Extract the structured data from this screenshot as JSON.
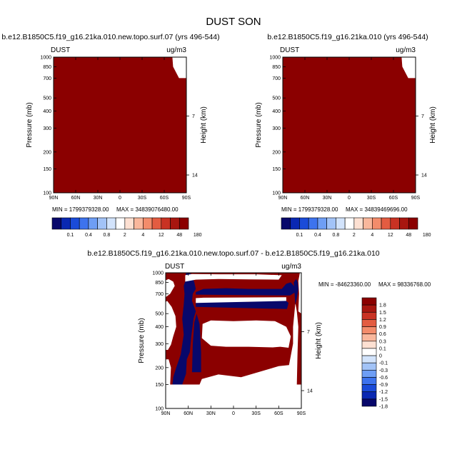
{
  "figure": {
    "title": "DUST SON"
  },
  "colormap": [
    "#08086b",
    "#0a28b2",
    "#1a4bd9",
    "#3d73ee",
    "#6e9ef5",
    "#a2c3f7",
    "#d2e3fb",
    "#ffffff",
    "#fde0d2",
    "#f9b79c",
    "#f38c6b",
    "#e35c41",
    "#c93223",
    "#a8160f",
    "#8b0000"
  ],
  "chart_data": [
    {
      "type": "heatmap",
      "title": "b.e12.B1850C5.f19_g16.21ka.010.new.topo.surf.07 (yrs 496-544)",
      "variable": "DUST",
      "units": "ug/m3",
      "ylabel": "Pressure (mb)",
      "y2label": "Height (km)",
      "xticks": [
        "90N",
        "60N",
        "30N",
        "0",
        "30S",
        "60S",
        "90S"
      ],
      "yticks": [
        "100",
        "150",
        "200",
        "300",
        "400",
        "500",
        "700",
        "850",
        "1000"
      ],
      "y2ticks": [
        "14",
        "7"
      ],
      "xlim": [
        90,
        -90
      ],
      "ylim": [
        1000,
        100
      ],
      "min_label": "MIN = 1799379328.00",
      "max_label": "MAX = 34839076480.00",
      "levels": [
        "0.1",
        "0.4",
        "0.8",
        "2",
        "4",
        "12",
        "48",
        "180"
      ],
      "colorbar": "horizontal",
      "missing_region": [
        [
          -71,
          1000
        ],
        [
          -72,
          850
        ],
        [
          -80,
          700
        ],
        [
          -90,
          700
        ],
        [
          -90,
          1000
        ]
      ]
    },
    {
      "type": "heatmap",
      "title": "b.e12.B1850C5.f19_g16.21ka.010 (yrs 496-544)",
      "variable": "DUST",
      "units": "ug/m3",
      "ylabel": "Pressure (mb)",
      "y2label": "Height (km)",
      "xticks": [
        "90N",
        "60N",
        "30N",
        "0",
        "30S",
        "60S",
        "90S"
      ],
      "yticks": [
        "100",
        "150",
        "200",
        "300",
        "400",
        "500",
        "700",
        "850",
        "1000"
      ],
      "y2ticks": [
        "14",
        "7"
      ],
      "xlim": [
        90,
        -90
      ],
      "ylim": [
        1000,
        100
      ],
      "min_label": "MIN = 1799379328.00",
      "max_label": "MAX = 34839469696.00",
      "levels": [
        "0.1",
        "0.4",
        "0.8",
        "2",
        "4",
        "12",
        "48",
        "180"
      ],
      "colorbar": "horizontal",
      "missing_region": [
        [
          -71,
          1000
        ],
        [
          -72,
          850
        ],
        [
          -80,
          700
        ],
        [
          -90,
          700
        ],
        [
          -90,
          1000
        ]
      ]
    },
    {
      "type": "heatmap",
      "title": "b.e12.B1850C5.f19_g16.21ka.010.new.topo.surf.07 - b.e12.B1850C5.f19_g16.21ka.010",
      "variable": "DUST",
      "units": "ug/m3",
      "ylabel": "Pressure (mb)",
      "y2label": "Height (km)",
      "xticks": [
        "90N",
        "60N",
        "30N",
        "0",
        "30S",
        "60S",
        "90S"
      ],
      "yticks": [
        "100",
        "150",
        "200",
        "300",
        "400",
        "500",
        "700",
        "850",
        "1000"
      ],
      "y2ticks": [
        "14",
        "7"
      ],
      "xlim": [
        90,
        -90
      ],
      "ylim": [
        1000,
        100
      ],
      "min_label": "MIN = -84623360.00",
      "max_label": "MAX = 98336768.00",
      "levels": [
        "1.8",
        "1.5",
        "1.2",
        "0.9",
        "0.6",
        "0.3",
        "0.1",
        "0",
        "-0.1",
        "-0.3",
        "-0.6",
        "-0.9",
        "-1.2",
        "-1.5",
        "-1.8"
      ],
      "colorbar": "vertical",
      "data_top_pressure": 150,
      "regions": [
        {
          "fill": "white",
          "polygon": [
            [
              90,
              150
            ],
            [
              -90,
              150
            ],
            [
              -90,
              100
            ],
            [
              90,
              100
            ]
          ]
        },
        {
          "fill": "positive",
          "polygon": [
            [
              90,
              150
            ],
            [
              -90,
              150
            ],
            [
              -90,
              1000
            ],
            [
              90,
              1000
            ]
          ]
        },
        {
          "fill": "negative",
          "polygon": [
            [
              81,
              150
            ],
            [
              68,
              150
            ],
            [
              63,
              180
            ],
            [
              62,
              230
            ],
            [
              58,
              260
            ],
            [
              56,
              340
            ],
            [
              53,
              460
            ],
            [
              50,
              520
            ],
            [
              55,
              620
            ],
            [
              54,
              700
            ],
            [
              50,
              760
            ],
            [
              52,
              850
            ],
            [
              56,
              980
            ],
            [
              60,
              1000
            ],
            [
              63,
              1000
            ],
            [
              63,
              900
            ],
            [
              66,
              800
            ],
            [
              65,
              700
            ],
            [
              66,
              580
            ],
            [
              68,
              460
            ],
            [
              66,
              350
            ],
            [
              70,
              250
            ],
            [
              76,
              200
            ],
            [
              80,
              170
            ]
          ]
        },
        {
          "fill": "negative",
          "polygon": [
            [
              55,
              185
            ],
            [
              43,
              185
            ],
            [
              43,
              260
            ],
            [
              45,
              420
            ],
            [
              49,
              500
            ],
            [
              52,
              430
            ],
            [
              54,
              300
            ]
          ]
        },
        {
          "fill": "negative",
          "polygon": [
            [
              50,
              560
            ],
            [
              -71,
              540
            ],
            [
              -73,
              600
            ],
            [
              -70,
              620
            ],
            [
              -58,
              630
            ],
            [
              -20,
              610
            ],
            [
              10,
              620
            ],
            [
              40,
              615
            ],
            [
              50,
              600
            ]
          ]
        },
        {
          "fill": "negative",
          "polygon": [
            [
              50,
              690
            ],
            [
              -75,
              680
            ],
            [
              -82,
              720
            ],
            [
              -81,
              790
            ],
            [
              -76,
              850
            ],
            [
              -70,
              830
            ],
            [
              -64,
              760
            ],
            [
              -20,
              760
            ],
            [
              10,
              770
            ],
            [
              40,
              760
            ],
            [
              50,
              720
            ]
          ]
        },
        {
          "fill": "white",
          "polygon": [
            [
              90,
              150
            ],
            [
              84,
              150
            ],
            [
              83,
              200
            ],
            [
              86,
              230
            ],
            [
              90,
              230
            ]
          ]
        },
        {
          "fill": "white",
          "polygon": [
            [
              87,
              270
            ],
            [
              83,
              295
            ],
            [
              80,
              340
            ],
            [
              76,
              400
            ],
            [
              77,
              480
            ],
            [
              82,
              560
            ],
            [
              88,
              620
            ],
            [
              90,
              610
            ],
            [
              90,
              270
            ]
          ]
        },
        {
          "fill": "white",
          "polygon": [
            [
              90,
              660
            ],
            [
              84,
              700
            ],
            [
              78,
              800
            ],
            [
              80,
              860
            ],
            [
              86,
              900
            ],
            [
              90,
              880
            ]
          ]
        },
        {
          "fill": "white",
          "polygon": [
            [
              45,
              150
            ],
            [
              -76,
              150
            ],
            [
              -78,
              210
            ],
            [
              -60,
              205
            ],
            [
              -40,
              190
            ],
            [
              -10,
              170
            ],
            [
              20,
              178
            ],
            [
              42,
              165
            ]
          ]
        },
        {
          "fill": "white",
          "polygon": [
            [
              42,
              330
            ],
            [
              30,
              290
            ],
            [
              10,
              285
            ],
            [
              -20,
              285
            ],
            [
              -52,
              282
            ],
            [
              -62,
              285
            ],
            [
              -73,
              280
            ],
            [
              -76,
              340
            ],
            [
              -70,
              400
            ],
            [
              -55,
              440
            ],
            [
              -30,
              445
            ],
            [
              0,
              440
            ],
            [
              30,
              445
            ],
            [
              41,
              420
            ]
          ]
        },
        {
          "fill": "white",
          "polygon": [
            [
              50,
              600
            ],
            [
              -70,
              620
            ],
            [
              -70,
              660
            ],
            [
              40,
              655
            ],
            [
              50,
              650
            ]
          ]
        },
        {
          "fill": "white",
          "polygon": [
            [
              64,
              860
            ],
            [
              50,
              890
            ],
            [
              20,
              900
            ],
            [
              -20,
              895
            ],
            [
              -60,
              890
            ],
            [
              -64,
              960
            ],
            [
              -30,
              975
            ],
            [
              20,
              975
            ],
            [
              55,
              980
            ],
            [
              64,
              960
            ]
          ]
        },
        {
          "fill": "white",
          "polygon": [
            [
              -72,
              150
            ],
            [
              -84,
              150
            ],
            [
              -85,
              260
            ],
            [
              -86,
              400
            ],
            [
              -84,
              520
            ],
            [
              -82,
              600
            ],
            [
              -81,
              520
            ],
            [
              -79,
              400
            ],
            [
              -79,
              300
            ],
            [
              -73,
              200
            ]
          ]
        },
        {
          "fill": "white",
          "polygon": [
            [
              -86,
              520
            ],
            [
              -87,
              700
            ],
            [
              -86,
              870
            ],
            [
              -88,
              1000
            ],
            [
              -90,
              1000
            ],
            [
              -90,
              500
            ]
          ]
        },
        {
          "fill": "negative",
          "polygon": [
            [
              -82,
              580
            ],
            [
              -84,
              650
            ],
            [
              -86,
              760
            ],
            [
              -85,
              860
            ],
            [
              -83,
              900
            ],
            [
              -80,
              850
            ],
            [
              -81,
              700
            ]
          ]
        }
      ]
    }
  ]
}
